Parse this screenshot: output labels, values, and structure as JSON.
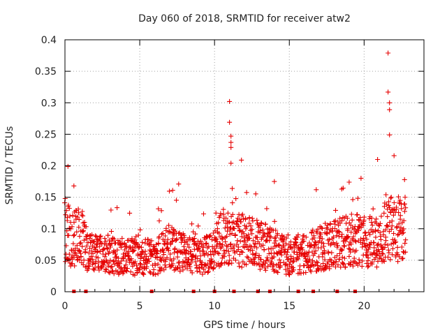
{
  "chart_data": {
    "type": "scatter",
    "title": "Day 060 of 2018, SRMTID for receiver atw2",
    "xlabel": "GPS time / hours",
    "ylabel": "SRMTID / TECUs",
    "xlim": [
      0,
      24
    ],
    "ylim": [
      0,
      0.4
    ],
    "xticks": [
      0,
      5,
      10,
      15,
      20
    ],
    "xtick_labels": [
      "0",
      "5",
      "10",
      "15",
      "20"
    ],
    "yticks": [
      0,
      0.05,
      0.1,
      0.15,
      0.2,
      0.25,
      0.3,
      0.35,
      0.4
    ],
    "ytick_labels": [
      "0",
      "0.05",
      "0.1",
      "0.15",
      "0.2",
      "0.25",
      "0.3",
      "0.35",
      "0.4"
    ],
    "grid": true,
    "marker": "+",
    "color": "#e60000",
    "series": [
      {
        "name": "SRMTID",
        "x_range_hours": [
          0.0,
          22.8
        ],
        "baseline_profile": [
          [
            0.0,
            0.1
          ],
          [
            0.5,
            0.08
          ],
          [
            1.0,
            0.09
          ],
          [
            1.5,
            0.07
          ],
          [
            2.0,
            0.06
          ],
          [
            3.0,
            0.06
          ],
          [
            4.0,
            0.055
          ],
          [
            5.0,
            0.055
          ],
          [
            6.0,
            0.055
          ],
          [
            7.0,
            0.07
          ],
          [
            8.0,
            0.06
          ],
          [
            9.0,
            0.055
          ],
          [
            10.0,
            0.065
          ],
          [
            10.5,
            0.09
          ],
          [
            11.0,
            0.09
          ],
          [
            12.0,
            0.08
          ],
          [
            13.0,
            0.075
          ],
          [
            14.0,
            0.065
          ],
          [
            15.0,
            0.055
          ],
          [
            16.0,
            0.06
          ],
          [
            17.0,
            0.07
          ],
          [
            18.0,
            0.075
          ],
          [
            19.0,
            0.08
          ],
          [
            20.0,
            0.085
          ],
          [
            21.0,
            0.07
          ],
          [
            21.5,
            0.11
          ],
          [
            22.0,
            0.1
          ],
          [
            22.8,
            0.1
          ]
        ],
        "peaks": [
          [
            0.2,
            0.199
          ],
          [
            0.6,
            0.168
          ],
          [
            7.2,
            0.161
          ],
          [
            7.6,
            0.171
          ],
          [
            11.0,
            0.302
          ],
          [
            11.0,
            0.269
          ],
          [
            11.1,
            0.247
          ],
          [
            11.1,
            0.237
          ],
          [
            11.1,
            0.229
          ],
          [
            11.1,
            0.204
          ],
          [
            11.8,
            0.209
          ],
          [
            14.0,
            0.175
          ],
          [
            16.8,
            0.162
          ],
          [
            18.5,
            0.163
          ],
          [
            19.0,
            0.174
          ],
          [
            20.9,
            0.21
          ],
          [
            21.6,
            0.379
          ],
          [
            21.6,
            0.317
          ],
          [
            21.7,
            0.3
          ],
          [
            21.7,
            0.289
          ],
          [
            21.7,
            0.249
          ],
          [
            22.0,
            0.216
          ],
          [
            22.7,
            0.178
          ]
        ]
      }
    ],
    "data_gaps_x": [
      0.6,
      1.4,
      5.8,
      8.6,
      10.0,
      11.3,
      12.9,
      13.7,
      15.6,
      16.6,
      18.2,
      19.4
    ]
  }
}
